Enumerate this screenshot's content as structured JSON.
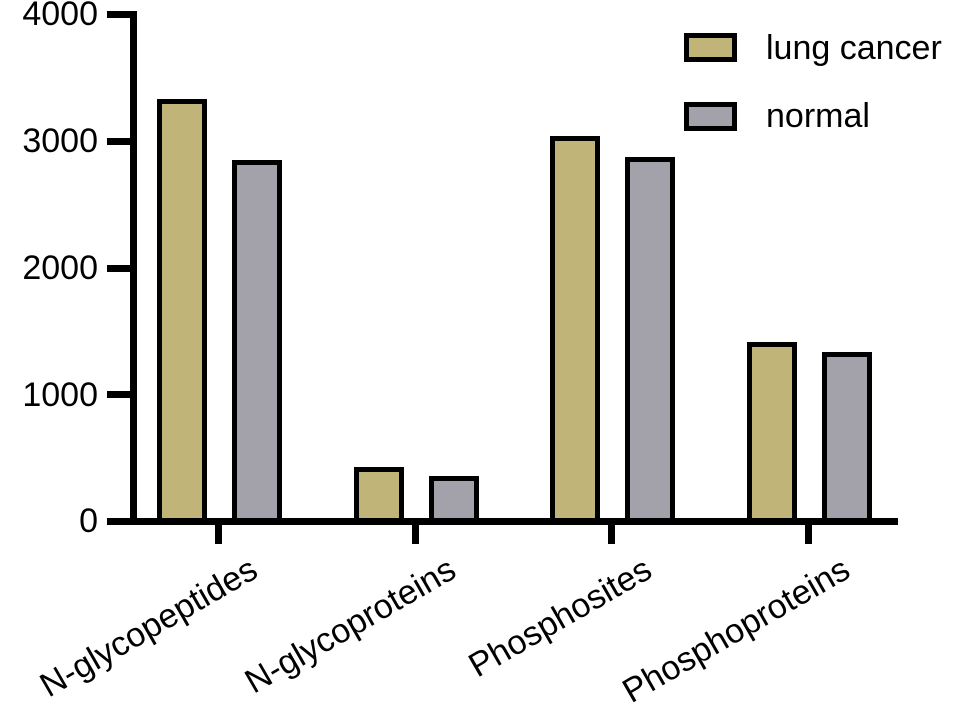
{
  "chart_data": {
    "type": "bar",
    "title": "",
    "xlabel": "",
    "ylabel": "",
    "categories": [
      "N-glycopeptides",
      "N-glycoproteins",
      "Phosphosites",
      "Phosphoproteins"
    ],
    "series": [
      {
        "name": "lung cancer",
        "color": "#C1B478",
        "values": [
          3330,
          425,
          3040,
          1415
        ]
      },
      {
        "name": "normal",
        "color": "#A3A1A9",
        "values": [
          2850,
          355,
          2875,
          1330
        ]
      }
    ],
    "ylim": [
      0,
      4000
    ],
    "yticks": [
      0,
      1000,
      2000,
      3000,
      4000
    ],
    "grid": false,
    "legend_position": "top-right",
    "bar_border_color": "#000000",
    "axis_color": "#000000",
    "background_color": "#ffffff",
    "x_label_rotation_deg": -30
  }
}
